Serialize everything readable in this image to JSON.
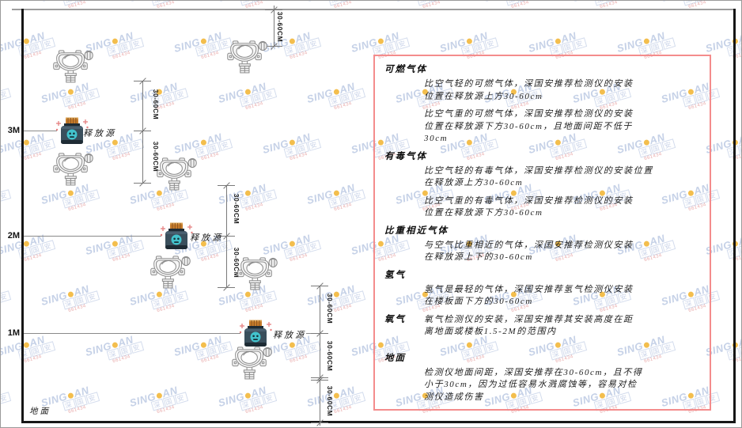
{
  "watermark": {
    "brand_prefix": "SING",
    "brand_suffix": "AN",
    "cjk_chars": [
      "深",
      "国",
      "安"
    ],
    "code": "661434",
    "brand_color": "#bcc9e3",
    "dot_color": "#f2b32f",
    "code_color": "#e59a9a"
  },
  "diagram": {
    "height_labels": {
      "m3": "3M",
      "m2": "2M",
      "m1": "1M"
    },
    "ground_label": "地面",
    "release_source_label": "释放源",
    "dim_label": "30-60CM"
  },
  "panel": {
    "border_color": "#f48c8c",
    "sections": [
      {
        "heading": "可燃气体",
        "paras": [
          [
            "比空气轻的可燃气体，深国安推荐检测仪的安装",
            "位置在释放源上方30-60cm"
          ],
          [
            "比空气重的可燃气体，深国安推荐检测仪的安装",
            "位置在释放源下方30-60cm，且地面间距不低于",
            "30cm"
          ]
        ]
      },
      {
        "heading": "有毒气体",
        "paras": [
          [
            "比空气轻的有毒气体，深国安推荐检测仪的安装位置",
            "在释放源上方30-60cm"
          ],
          [
            "比空气重的有毒气体，深国安推荐检测仪的安装",
            "位置在释放源下方30-60cm"
          ]
        ]
      },
      {
        "heading": "比重相近气体",
        "paras": [
          [
            "与空气比重相近的气体，深国安推荐检测仪安装",
            "在释放源上下的30-60cm"
          ]
        ]
      },
      {
        "heading": "氢气",
        "paras": [
          [
            "氢气是最轻的气体，深国安推荐氢气检测仪安装",
            "在楼板面下方的30-60cm"
          ]
        ]
      },
      {
        "heading": "氧气",
        "paras": [
          [
            "氧气检测仪的安装，深国安推荐其安装高度在距",
            "离地面或楼板1.5-2M的范围内"
          ]
        ]
      },
      {
        "heading": "地面",
        "paras": [
          [
            "检测仪地面间距，深国安推荐在30-60cm，且不得",
            "小于30cm，因为过低容易水溅腐蚀等，容易对检",
            "测仪造成伤害"
          ]
        ]
      }
    ]
  }
}
